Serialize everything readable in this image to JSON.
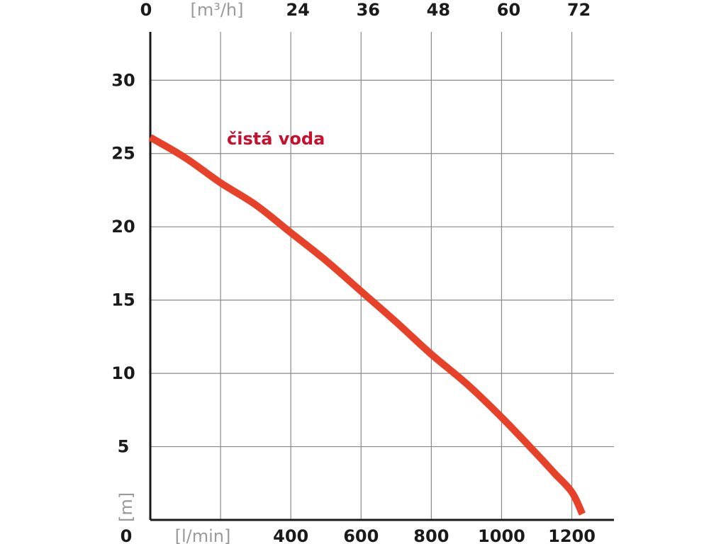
{
  "chart_data": {
    "type": "line",
    "x_bottom": {
      "unit": "[l/min]",
      "ticks": [
        "400",
        "600",
        "800",
        "1000",
        "1200"
      ],
      "tick_values": [
        400,
        600,
        800,
        1000,
        1200
      ],
      "origin_label": "0",
      "xlim": [
        0,
        1320
      ]
    },
    "x_top": {
      "unit": "[m³/h]",
      "ticks": [
        "24",
        "36",
        "48",
        "60",
        "72"
      ],
      "origin_label": "0"
    },
    "y": {
      "unit": "[m]",
      "ticks": [
        "5",
        "10",
        "15",
        "20",
        "25",
        "30"
      ],
      "tick_values": [
        5,
        10,
        15,
        20,
        25,
        30
      ],
      "origin_label": "0",
      "ylim": [
        0,
        33.3
      ]
    },
    "grid": true,
    "series": [
      {
        "name": "čistá voda",
        "color": "#e8412a",
        "label_color": "#c8102e",
        "x": [
          0,
          100,
          200,
          300,
          400,
          500,
          600,
          700,
          800,
          900,
          1000,
          1100,
          1150,
          1200,
          1230
        ],
        "y": [
          26.1,
          24.7,
          23.0,
          21.5,
          19.6,
          17.7,
          15.6,
          13.5,
          11.3,
          9.3,
          7.0,
          4.5,
          3.2,
          1.9,
          0.4
        ]
      }
    ]
  }
}
